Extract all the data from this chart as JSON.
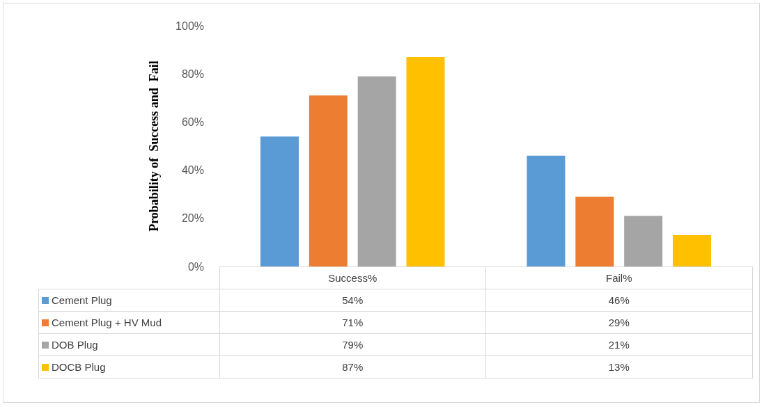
{
  "chart_data": {
    "type": "bar",
    "ylabel": "Probability of  Success and  Fail",
    "categories": [
      "Success%",
      "Fail%"
    ],
    "series": [
      {
        "name": "Cement Plug",
        "color": "#5b9bd5",
        "values": [
          54,
          46
        ],
        "value_labels": [
          "54%",
          "46%"
        ]
      },
      {
        "name": "Cement Plug + HV Mud",
        "color": "#ed7d31",
        "values": [
          71,
          29
        ],
        "value_labels": [
          "71%",
          "29%"
        ]
      },
      {
        "name": "DOB Plug",
        "color": "#a5a5a5",
        "values": [
          79,
          21
        ],
        "value_labels": [
          "79%",
          "21%"
        ]
      },
      {
        "name": "DOCB Plug",
        "color": "#ffc000",
        "values": [
          87,
          13
        ],
        "value_labels": [
          "87%",
          "13%"
        ]
      }
    ],
    "ylim": [
      0,
      100
    ],
    "yticks": [
      {
        "value": 0,
        "label": "0%"
      },
      {
        "value": 20,
        "label": "20%"
      },
      {
        "value": 40,
        "label": "40%"
      },
      {
        "value": 60,
        "label": "60%"
      },
      {
        "value": 80,
        "label": "80%"
      },
      {
        "value": 100,
        "label": "100%"
      }
    ],
    "grid": false,
    "legend": "bottom left"
  }
}
